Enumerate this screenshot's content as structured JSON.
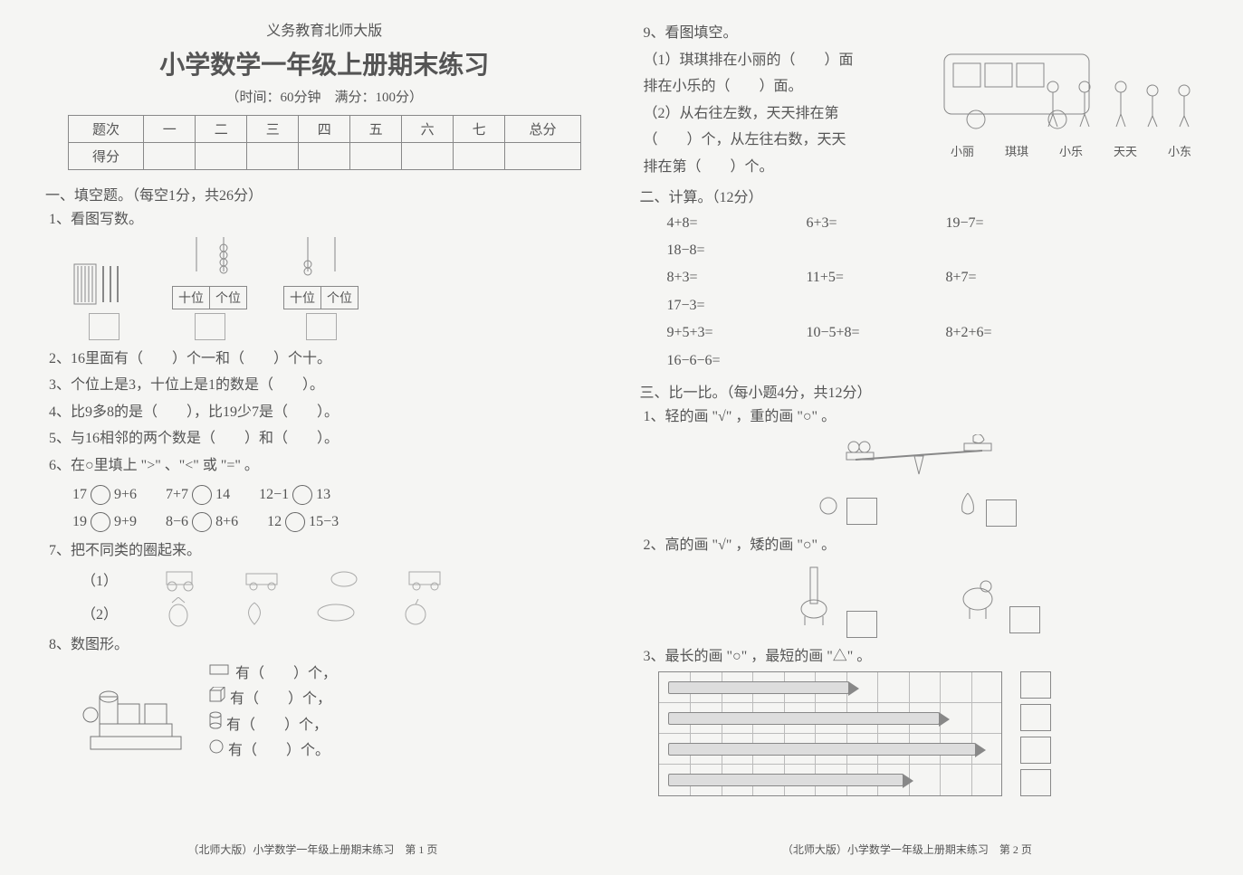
{
  "header": {
    "subtitle": "义务教育北师大版",
    "title": "小学数学一年级上册期末练习",
    "info": "（时间：60分钟　满分：100分）"
  },
  "score_table": {
    "row1": [
      "题次",
      "一",
      "二",
      "三",
      "四",
      "五",
      "六",
      "七",
      "总分"
    ],
    "row2_label": "得分"
  },
  "s1": {
    "heading": "一、填空题。（每空1分，共26分）",
    "q1": "1、看图写数。",
    "place_tens": "十位",
    "place_ones": "个位",
    "q2": "2、16里面有（　　）个一和（　　）个十。",
    "q3": "3、个位上是3，十位上是1的数是（　　）。",
    "q4": "4、比9多8的是（　　），比19少7是（　　）。",
    "q5": "5、与16相邻的两个数是（　　）和（　　）。",
    "q6": "6、在○里填上 \">\" 、\"<\" 或 \"=\" 。",
    "q6a": "17",
    "q6b": "9+6",
    "q6c": "7+7",
    "q6d": "14",
    "q6e": "12−1",
    "q6f": "13",
    "q6g": "19",
    "q6h": "9+9",
    "q6i": "8−6",
    "q6j": "8+6",
    "q6k": "12",
    "q6l": "15−3",
    "q7": "7、把不同类的圈起来。",
    "q7_1": "（1）",
    "q7_2": "（2）",
    "q8": "8、数图形。",
    "q8a": "有（　　）个，",
    "q8b": "有（　　）个，",
    "q8c": "有（　　）个，",
    "q8d": "有（　　）个。"
  },
  "s9": {
    "heading": "9、看图填空。",
    "line1": "（1）琪琪排在小丽的（　　）面",
    "line2": "排在小乐的（　　）面。",
    "line3": "（2）从右往左数，天天排在第",
    "line4": "（　　）个，从左往右数，天天",
    "line5": "排在第（　　）个。",
    "names": [
      "小丽",
      "琪琪",
      "小乐",
      "天天",
      "小东"
    ]
  },
  "s2": {
    "heading": "二、计算。（12分）",
    "r1": [
      "4+8=",
      "6+3=",
      "19−7=",
      "18−8="
    ],
    "r2": [
      "8+3=",
      "11+5=",
      "8+7=",
      "17−3="
    ],
    "r3": [
      "9+5+3=",
      "10−5+8=",
      "8+2+6=",
      "16−6−6="
    ]
  },
  "s3": {
    "heading": "三、比一比。（每小题4分，共12分）",
    "q1": "1、轻的画 \"√\" ，重的画 \"○\" 。",
    "q2": "2、高的画 \"√\" ，矮的画 \"○\" 。",
    "q3": "3、最长的画 \"○\" ，最短的画 \"△\" 。"
  },
  "pencils": {
    "lengths": [
      200,
      300,
      340,
      260
    ],
    "grid_cols": 11
  },
  "footer": {
    "p1": "（北师大版）小学数学一年级上册期末练习　第 1 页",
    "p2": "（北师大版）小学数学一年级上册期末练习　第 2 页"
  },
  "colors": {
    "text": "#555555",
    "border": "#888888",
    "bg": "#f5f5f3"
  }
}
